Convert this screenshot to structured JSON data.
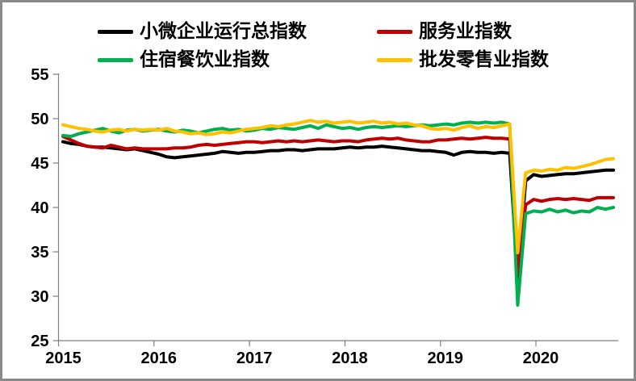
{
  "chart_data": {
    "type": "line",
    "title": "",
    "xlabel": "",
    "ylabel": "",
    "x_unit": "monthly points starting January 2015",
    "x_tick_years": [
      "2015",
      "2016",
      "2017",
      "2018",
      "2019",
      "2020"
    ],
    "y_ticks": [
      "25",
      "30",
      "35",
      "40",
      "45",
      "50",
      "55"
    ],
    "ylim": [
      25,
      55
    ],
    "grid": false,
    "legend_position": "top",
    "series": [
      {
        "name": "小微企业运行总指数",
        "color": "#000000",
        "values": [
          47.4,
          47.2,
          47.1,
          46.9,
          46.8,
          46.8,
          46.7,
          46.6,
          46.5,
          46.6,
          46.4,
          46.2,
          46.0,
          45.7,
          45.6,
          45.7,
          45.8,
          45.9,
          46.0,
          46.1,
          46.3,
          46.2,
          46.1,
          46.2,
          46.2,
          46.3,
          46.4,
          46.4,
          46.5,
          46.5,
          46.4,
          46.5,
          46.6,
          46.6,
          46.6,
          46.7,
          46.8,
          46.7,
          46.8,
          46.8,
          46.9,
          46.8,
          46.7,
          46.6,
          46.5,
          46.4,
          46.4,
          46.3,
          46.2,
          45.9,
          46.2,
          46.3,
          46.2,
          46.2,
          46.1,
          46.2,
          46.1,
          31.8,
          43.0,
          43.7,
          43.5,
          43.6,
          43.7,
          43.8,
          43.8,
          43.9,
          44.0,
          44.1,
          44.2,
          44.2
        ]
      },
      {
        "name": "服务业指数",
        "color": "#c00000",
        "values": [
          48.0,
          47.6,
          47.2,
          46.9,
          46.8,
          46.7,
          47.0,
          46.8,
          46.6,
          46.7,
          46.6,
          46.6,
          46.6,
          46.6,
          46.7,
          46.7,
          46.8,
          47.0,
          47.1,
          47.0,
          47.1,
          47.2,
          47.3,
          47.4,
          47.4,
          47.3,
          47.4,
          47.5,
          47.4,
          47.5,
          47.4,
          47.5,
          47.6,
          47.5,
          47.4,
          47.5,
          47.5,
          47.4,
          47.6,
          47.7,
          47.8,
          47.7,
          47.8,
          47.6,
          47.5,
          47.4,
          47.4,
          47.6,
          47.6,
          47.7,
          47.8,
          47.7,
          47.8,
          47.9,
          47.8,
          47.8,
          47.7,
          32.6,
          40.3,
          40.9,
          40.7,
          40.9,
          41.0,
          40.9,
          41.0,
          40.9,
          40.8,
          41.1,
          41.1,
          41.1
        ]
      },
      {
        "name": "住宿餐饮业指数",
        "color": "#00b050",
        "values": [
          48.1,
          48.0,
          48.3,
          48.5,
          48.7,
          48.9,
          48.6,
          48.4,
          48.7,
          48.8,
          48.6,
          48.7,
          48.8,
          48.6,
          48.5,
          48.7,
          48.6,
          48.4,
          48.6,
          48.8,
          48.9,
          48.7,
          48.8,
          48.6,
          48.7,
          48.9,
          48.8,
          49.0,
          48.9,
          48.8,
          49.0,
          49.2,
          48.9,
          49.3,
          49.1,
          48.9,
          49.0,
          48.8,
          49.0,
          49.1,
          49.0,
          49.1,
          49.2,
          49.1,
          49.2,
          49.3,
          49.2,
          49.3,
          49.4,
          49.3,
          49.5,
          49.6,
          49.5,
          49.6,
          49.5,
          49.6,
          49.4,
          29.0,
          39.3,
          39.6,
          39.5,
          39.8,
          39.5,
          39.7,
          39.4,
          39.6,
          39.5,
          40.0,
          39.8,
          40.0
        ]
      },
      {
        "name": "批发零售业指数",
        "color": "#ffc000",
        "values": [
          49.3,
          49.1,
          48.9,
          48.8,
          48.6,
          48.5,
          48.7,
          48.8,
          48.6,
          48.8,
          48.7,
          48.8,
          48.7,
          48.9,
          48.6,
          48.5,
          48.3,
          48.4,
          48.2,
          48.3,
          48.5,
          48.4,
          48.6,
          48.8,
          48.9,
          49.0,
          49.2,
          49.1,
          49.3,
          49.4,
          49.6,
          49.8,
          49.6,
          49.7,
          49.5,
          49.6,
          49.7,
          49.5,
          49.6,
          49.7,
          49.5,
          49.6,
          49.4,
          49.5,
          49.3,
          49.2,
          48.9,
          48.8,
          48.9,
          48.7,
          49.0,
          49.2,
          48.9,
          49.1,
          49.0,
          49.2,
          49.4,
          34.9,
          43.9,
          44.2,
          44.1,
          44.3,
          44.2,
          44.5,
          44.4,
          44.6,
          44.8,
          45.1,
          45.4,
          45.5
        ]
      }
    ]
  }
}
